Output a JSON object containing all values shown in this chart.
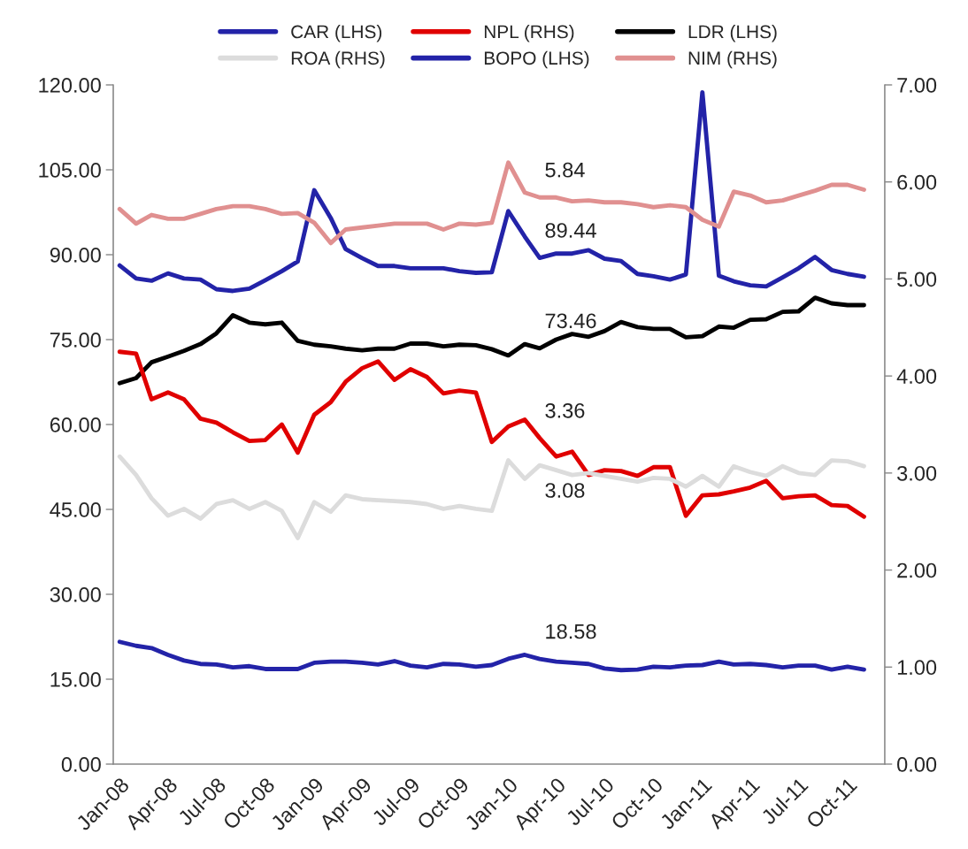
{
  "chart_data": {
    "type": "line",
    "x": [
      "2008-01",
      "2008-02",
      "2008-03",
      "2008-04",
      "2008-05",
      "2008-06",
      "2008-07",
      "2008-08",
      "2008-09",
      "2008-10",
      "2008-11",
      "2008-12",
      "2009-01",
      "2009-02",
      "2009-03",
      "2009-04",
      "2009-05",
      "2009-06",
      "2009-07",
      "2009-08",
      "2009-09",
      "2009-10",
      "2009-11",
      "2009-12",
      "2010-01",
      "2010-02",
      "2010-03",
      "2010-04",
      "2010-05",
      "2010-06",
      "2010-07",
      "2010-08",
      "2010-09",
      "2010-10",
      "2010-11",
      "2010-12",
      "2011-01",
      "2011-02",
      "2011-03",
      "2011-04",
      "2011-05",
      "2011-06",
      "2011-07",
      "2011-08",
      "2011-09",
      "2011-10",
      "2011-11"
    ],
    "series": [
      {
        "name": "CAR (LHS)",
        "color": "#2323a8",
        "axis": "y",
        "values": [
          21.6,
          20.9,
          20.5,
          19.3,
          18.3,
          17.7,
          17.6,
          17.1,
          17.3,
          16.8,
          16.8,
          16.8,
          17.9,
          18.1,
          18.1,
          17.9,
          17.6,
          18.2,
          17.4,
          17.1,
          17.7,
          17.6,
          17.2,
          17.5,
          18.6,
          19.3,
          18.58,
          18.1,
          17.9,
          17.7,
          16.9,
          16.6,
          16.7,
          17.2,
          17.1,
          17.4,
          17.5,
          18.1,
          17.6,
          17.7,
          17.5,
          17.1,
          17.4,
          17.4,
          16.7,
          17.2,
          16.7
        ],
        "value_labels": [
          null,
          null,
          null,
          null,
          null,
          null,
          null,
          null,
          null,
          null,
          null,
          null,
          null,
          null,
          null,
          null,
          null,
          null,
          null,
          null,
          null,
          null,
          null,
          null,
          null,
          null,
          "18.58",
          null,
          null,
          null,
          null,
          null,
          null,
          null,
          null,
          null,
          null,
          null,
          null,
          null,
          null,
          null,
          null,
          null,
          null,
          null,
          null
        ]
      },
      {
        "name": "NPL (RHS)",
        "color": "#e00000",
        "axis": "y2",
        "values": [
          4.25,
          4.23,
          3.76,
          3.83,
          3.76,
          3.56,
          3.52,
          3.42,
          3.33,
          3.34,
          3.5,
          3.21,
          3.6,
          3.73,
          3.94,
          4.08,
          4.15,
          3.96,
          4.07,
          3.99,
          3.82,
          3.85,
          3.83,
          3.32,
          3.48,
          3.55,
          3.36,
          3.17,
          3.22,
          2.98,
          3.03,
          3.02,
          2.97,
          3.06,
          3.06,
          2.56,
          2.77,
          2.78,
          2.81,
          2.85,
          2.92,
          2.74,
          2.76,
          2.77,
          2.67,
          2.66,
          2.55
        ],
        "value_labels": [
          null,
          null,
          null,
          null,
          null,
          null,
          null,
          null,
          null,
          null,
          null,
          null,
          null,
          null,
          null,
          null,
          null,
          null,
          null,
          null,
          null,
          null,
          null,
          null,
          null,
          null,
          "3.36",
          null,
          null,
          null,
          null,
          null,
          null,
          null,
          null,
          null,
          null,
          null,
          null,
          null,
          null,
          null,
          null,
          null,
          null,
          null,
          null
        ]
      },
      {
        "name": "LDR (LHS)",
        "color": "#000000",
        "axis": "y",
        "values": [
          67.3,
          68.2,
          71.0,
          72.0,
          73.0,
          74.2,
          76.1,
          79.3,
          78.0,
          77.7,
          78.0,
          74.8,
          74.1,
          73.8,
          73.4,
          73.1,
          73.4,
          73.4,
          74.3,
          74.3,
          73.8,
          74.1,
          74.0,
          73.3,
          72.2,
          74.2,
          73.46,
          75.0,
          76.0,
          75.5,
          76.5,
          78.1,
          77.2,
          76.9,
          76.9,
          75.4,
          75.6,
          77.3,
          77.1,
          78.5,
          78.6,
          79.9,
          80.0,
          82.4,
          81.4,
          81.1,
          81.1
        ],
        "value_labels": [
          null,
          null,
          null,
          null,
          null,
          null,
          null,
          null,
          null,
          null,
          null,
          null,
          null,
          null,
          null,
          null,
          null,
          null,
          null,
          null,
          null,
          null,
          null,
          null,
          null,
          null,
          "73.46",
          null,
          null,
          null,
          null,
          null,
          null,
          null,
          null,
          null,
          null,
          null,
          null,
          null,
          null,
          null,
          null,
          null,
          null,
          null,
          null
        ]
      },
      {
        "name": "ROA (RHS)",
        "color": "#dcdcdc",
        "axis": "y2",
        "values": [
          3.17,
          2.98,
          2.74,
          2.56,
          2.63,
          2.53,
          2.68,
          2.72,
          2.63,
          2.7,
          2.61,
          2.33,
          2.7,
          2.6,
          2.77,
          2.73,
          2.72,
          2.71,
          2.7,
          2.68,
          2.63,
          2.66,
          2.63,
          2.61,
          3.13,
          2.94,
          3.08,
          3.03,
          2.98,
          3.0,
          2.97,
          2.94,
          2.91,
          2.95,
          2.94,
          2.86,
          2.97,
          2.86,
          3.07,
          3.01,
          2.97,
          3.07,
          3.0,
          2.98,
          3.13,
          3.12,
          3.07
        ],
        "value_labels": [
          null,
          null,
          null,
          null,
          null,
          null,
          null,
          null,
          null,
          null,
          null,
          null,
          null,
          null,
          null,
          null,
          null,
          null,
          null,
          null,
          null,
          null,
          null,
          null,
          null,
          null,
          "3.08",
          null,
          null,
          null,
          null,
          null,
          null,
          null,
          null,
          null,
          null,
          null,
          null,
          null,
          null,
          null,
          null,
          null,
          null,
          null,
          null
        ]
      },
      {
        "name": "BOPO (LHS)",
        "color": "#2323a8",
        "axis": "y",
        "values": [
          88.1,
          85.8,
          85.4,
          86.7,
          85.8,
          85.6,
          83.9,
          83.6,
          84.0,
          85.5,
          87.1,
          88.8,
          101.4,
          96.5,
          91.0,
          89.4,
          88.0,
          88.0,
          87.6,
          87.6,
          87.6,
          87.1,
          86.8,
          86.9,
          97.7,
          93.2,
          89.44,
          90.2,
          90.2,
          90.8,
          89.3,
          88.9,
          86.6,
          86.2,
          85.6,
          86.5,
          118.7,
          86.3,
          85.3,
          84.6,
          84.4,
          86.0,
          87.6,
          89.6,
          87.3,
          86.6,
          86.1
        ],
        "value_labels": [
          null,
          null,
          null,
          null,
          null,
          null,
          null,
          null,
          null,
          null,
          null,
          null,
          null,
          null,
          null,
          null,
          null,
          null,
          null,
          null,
          null,
          null,
          null,
          null,
          null,
          null,
          "89.44",
          null,
          null,
          null,
          null,
          null,
          null,
          null,
          null,
          null,
          null,
          null,
          null,
          null,
          null,
          null,
          null,
          null,
          null,
          null,
          null
        ]
      },
      {
        "name": "NIM (RHS)",
        "color": "#e09090",
        "axis": "y2",
        "values": [
          5.72,
          5.57,
          5.66,
          5.62,
          5.62,
          5.67,
          5.72,
          5.75,
          5.75,
          5.72,
          5.67,
          5.68,
          5.58,
          5.37,
          5.51,
          5.53,
          5.55,
          5.57,
          5.57,
          5.57,
          5.51,
          5.57,
          5.56,
          5.58,
          6.2,
          5.89,
          5.84,
          5.84,
          5.8,
          5.81,
          5.79,
          5.79,
          5.77,
          5.74,
          5.76,
          5.74,
          5.61,
          5.54,
          5.9,
          5.86,
          5.79,
          5.81,
          5.86,
          5.91,
          5.97,
          5.97,
          5.92
        ],
        "value_labels": [
          null,
          null,
          null,
          null,
          null,
          null,
          null,
          null,
          null,
          null,
          null,
          null,
          null,
          null,
          null,
          null,
          null,
          null,
          null,
          null,
          null,
          null,
          null,
          null,
          null,
          null,
          "5.84",
          null,
          null,
          null,
          null,
          null,
          null,
          null,
          null,
          null,
          null,
          null,
          null,
          null,
          null,
          null,
          null,
          null,
          null,
          null,
          null
        ]
      }
    ],
    "xlim": [
      "2007-12-20",
      "2011-12-10"
    ],
    "xticks": [
      {
        "value": "2008-01",
        "label": "Jan-08"
      },
      {
        "value": "2008-04",
        "label": "Apr-08"
      },
      {
        "value": "2008-07",
        "label": "Jul-08"
      },
      {
        "value": "2008-10",
        "label": "Oct-08"
      },
      {
        "value": "2009-01",
        "label": "Jan-09"
      },
      {
        "value": "2009-04",
        "label": "Apr-09"
      },
      {
        "value": "2009-07",
        "label": "Jul-09"
      },
      {
        "value": "2009-10",
        "label": "Oct-09"
      },
      {
        "value": "2010-01",
        "label": "Jan-10"
      },
      {
        "value": "2010-04",
        "label": "Apr-10"
      },
      {
        "value": "2010-07",
        "label": "Jul-10"
      },
      {
        "value": "2010-10",
        "label": "Oct-10"
      },
      {
        "value": "2011-01",
        "label": "Jan-11"
      },
      {
        "value": "2011-04",
        "label": "Apr-11"
      },
      {
        "value": "2011-07",
        "label": "Jul-11"
      },
      {
        "value": "2011-10",
        "label": "Oct-11"
      }
    ],
    "ylim": [
      0,
      120
    ],
    "yticks": [
      {
        "value": 0,
        "label": "0.00"
      },
      {
        "value": 15,
        "label": "15.00"
      },
      {
        "value": 30,
        "label": "30.00"
      },
      {
        "value": 45,
        "label": "45.00"
      },
      {
        "value": 60,
        "label": "60.00"
      },
      {
        "value": 75,
        "label": "75.00"
      },
      {
        "value": 90,
        "label": "90.00"
      },
      {
        "value": 105,
        "label": "105.00"
      },
      {
        "value": 120,
        "label": "120.00"
      }
    ],
    "y2lim": [
      0,
      7
    ],
    "y2ticks": [
      {
        "value": 0,
        "label": "0.00"
      },
      {
        "value": 1,
        "label": "1.00"
      },
      {
        "value": 2,
        "label": "2.00"
      },
      {
        "value": 3,
        "label": "3.00"
      },
      {
        "value": 4,
        "label": "4.00"
      },
      {
        "value": 5,
        "label": "5.00"
      },
      {
        "value": 6,
        "label": "6.00"
      },
      {
        "value": 7,
        "label": "7.00"
      }
    ],
    "legend": "top",
    "grid": false,
    "line_style": "solid",
    "marker": "none"
  }
}
